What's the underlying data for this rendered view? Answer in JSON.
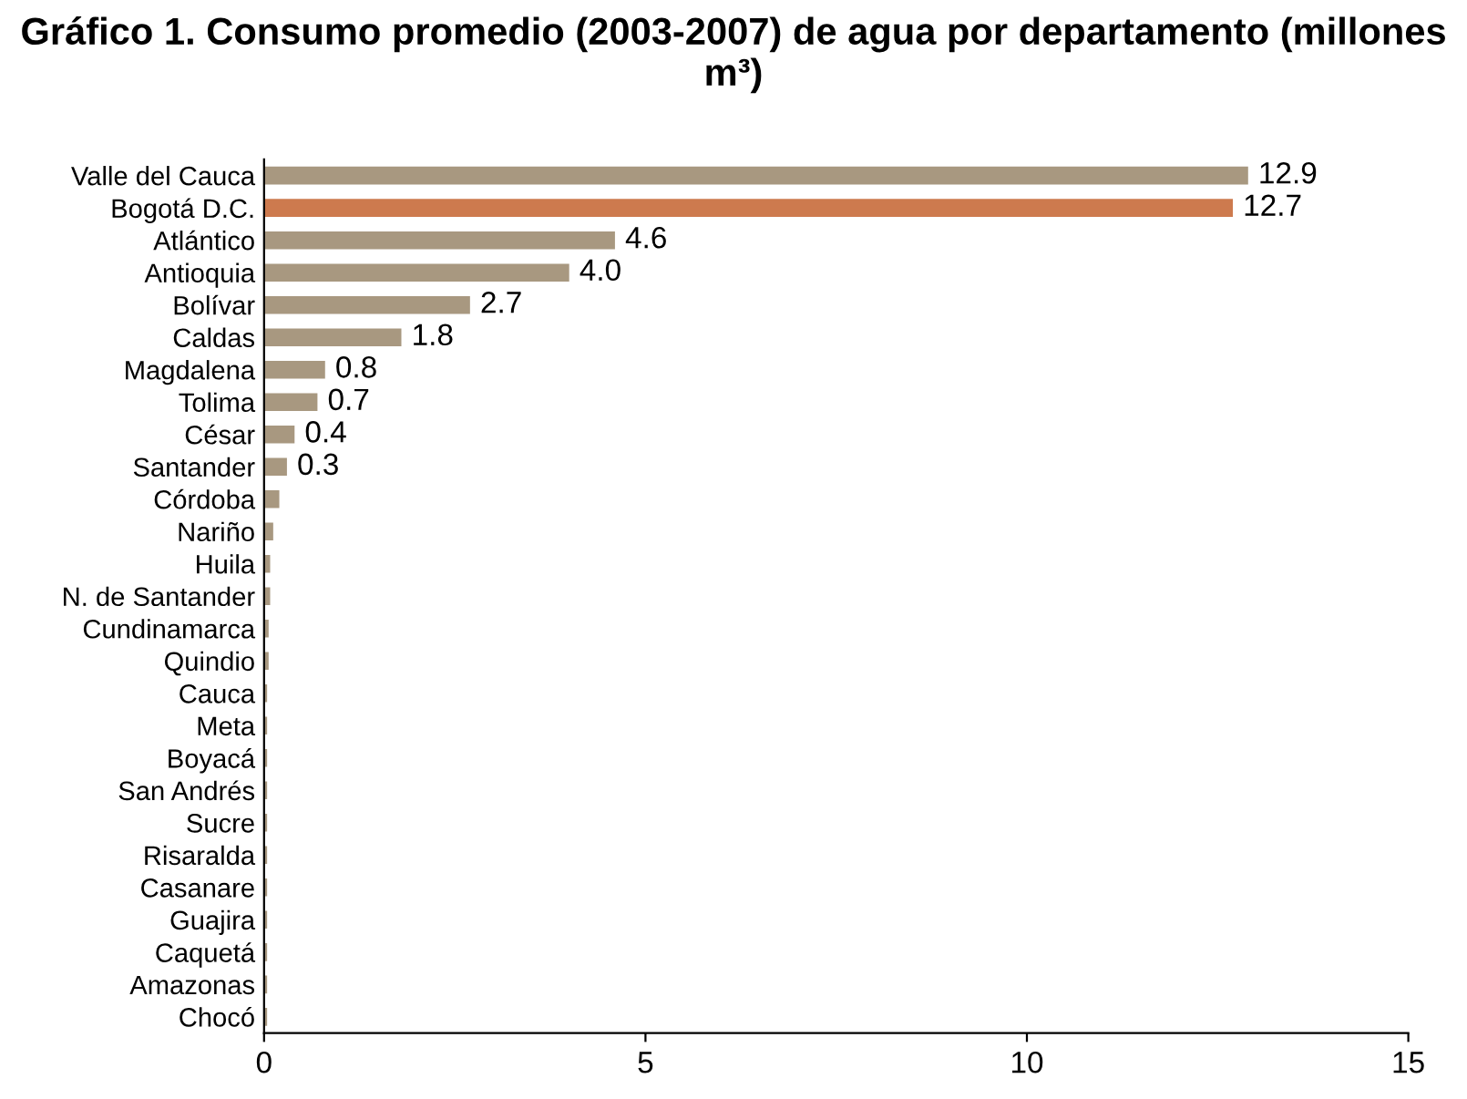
{
  "chart_data": {
    "type": "bar",
    "orientation": "horizontal",
    "title": "Gráfico 1. Consumo promedio (2003-2007) de agua por departamento (millones m³)",
    "categories": [
      "Valle del Cauca",
      "Bogotá D.C.",
      "Atlántico",
      "Antioquia",
      "Bolívar",
      "Caldas",
      "Magdalena",
      "Tolima",
      "César",
      "Santander",
      "Córdoba",
      "Nariño",
      "Huila",
      "N. de Santander",
      "Cundinamarca",
      "Quindio",
      "Cauca",
      "Meta",
      "Boyacá",
      "San Andrés",
      "Sucre",
      "Risaralda",
      "Casanare",
      "Guajira",
      "Caquetá",
      "Amazonas",
      "Chocó"
    ],
    "values": [
      12.9,
      12.7,
      4.6,
      4.0,
      2.7,
      1.8,
      0.8,
      0.7,
      0.4,
      0.3,
      0.2,
      0.12,
      0.08,
      0.08,
      0.06,
      0.06,
      0.04,
      0.04,
      0.04,
      0.04,
      0.04,
      0.04,
      0.04,
      0.04,
      0.04,
      0.04,
      0.04
    ],
    "value_labels": [
      "12.9",
      "12.7",
      "4.6",
      "4.0",
      "2.7",
      "1.8",
      "0.8",
      "0.7",
      "0.4",
      "0.3",
      null,
      null,
      null,
      null,
      null,
      null,
      null,
      null,
      null,
      null,
      null,
      null,
      null,
      null,
      null,
      null,
      null
    ],
    "colors": [
      "#a89880",
      "#cd7a4e",
      "#a89880",
      "#a89880",
      "#a89880",
      "#a89880",
      "#a89880",
      "#a89880",
      "#a89880",
      "#a89880",
      "#a89880",
      "#a89880",
      "#a89880",
      "#a89880",
      "#a89880",
      "#a89880",
      "#a89880",
      "#a89880",
      "#a89880",
      "#a89880",
      "#a89880",
      "#a89880",
      "#a89880",
      "#a89880",
      "#a89880",
      "#a89880",
      "#a89880"
    ],
    "xlim": [
      0,
      15
    ],
    "xticks": [
      0,
      5,
      10,
      15
    ],
    "grid": false,
    "legend": false
  }
}
